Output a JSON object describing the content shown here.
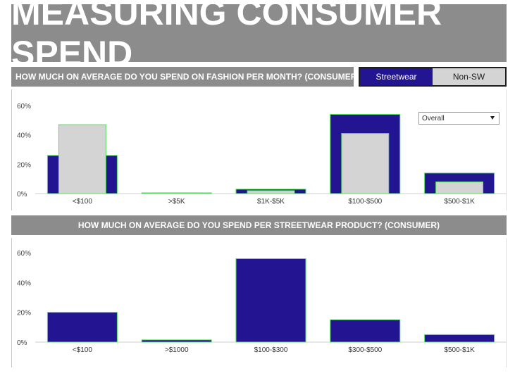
{
  "page_title": "MEASURING CONSUMER SPEND",
  "colors": {
    "streetwear": "#231591",
    "non_sw": "#d4d4d4",
    "bar_outline": "#56e05a",
    "header_bg": "#8c8c8c"
  },
  "legend": {
    "streetwear_label": "Streetwear",
    "non_sw_label": "Non-SW"
  },
  "dropdown": {
    "selected": "Overall"
  },
  "chart_data": [
    {
      "type": "bar",
      "title": "HOW MUCH ON AVERAGE DO YOU SPEND ON FASHION PER MONTH? (CONSUMER)",
      "categories": [
        "<$100",
        ">$5K",
        "$1K-$5K",
        "$100-$500",
        "$500-$1K"
      ],
      "series": [
        {
          "name": "Streetwear",
          "values": [
            26,
            0.5,
            3,
            54,
            14
          ]
        },
        {
          "name": "Non-SW",
          "values": [
            47,
            0.5,
            2,
            41,
            8
          ]
        }
      ],
      "yticks": [
        "0%",
        "20%",
        "40%",
        "60%"
      ],
      "ylim": [
        0,
        60
      ],
      "grid": false
    },
    {
      "type": "bar",
      "title": "HOW MUCH ON AVERAGE DO YOU SPEND PER STREETWEAR PRODUCT? (CONSUMER)",
      "categories": [
        "<$100",
        ">$1000",
        "$100-$300",
        "$300-$500",
        "$500-$1K"
      ],
      "series": [
        {
          "name": "Streetwear",
          "values": [
            20,
            1.5,
            56,
            15,
            5
          ]
        }
      ],
      "yticks": [
        "0%",
        "20%",
        "40%",
        "60%"
      ],
      "ylim": [
        0,
        60
      ],
      "grid": false
    }
  ]
}
